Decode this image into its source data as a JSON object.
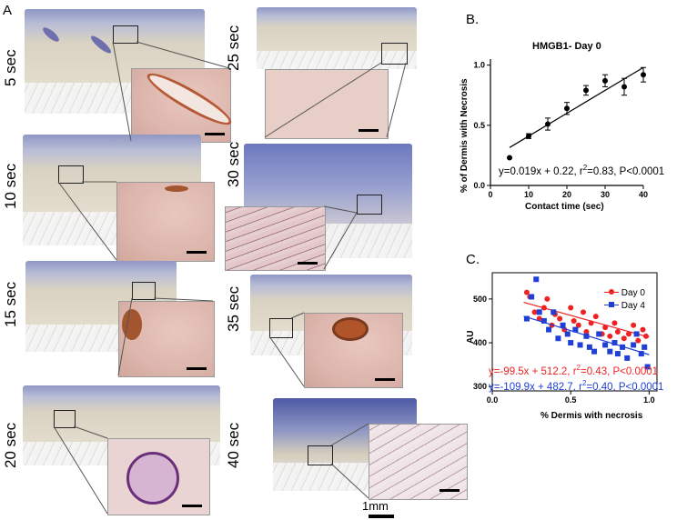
{
  "panel_a": {
    "letter": "A",
    "scale_bar_label": "1mm",
    "tiles": [
      {
        "label": "5 sec"
      },
      {
        "label": "25 sec"
      },
      {
        "label": "10 sec"
      },
      {
        "label": "30 sec"
      },
      {
        "label": "15 sec"
      },
      {
        "label": "35 sec"
      },
      {
        "label": "20 sec"
      },
      {
        "label": "40 sec"
      }
    ]
  },
  "panel_b": {
    "letter": "B.",
    "equation": {
      "pre": "y=0.019x + 0.22, r",
      "sup": "2",
      "post": "=0.83, P<0.0001"
    }
  },
  "panel_c": {
    "letter": "C.",
    "equation_day0": {
      "pre": "y=-99.5x + 512.2, r",
      "sup": "2",
      "post": "=0.43, P<0.0001"
    },
    "equation_day4": {
      "pre": "y=-109.9x + 482.7, r",
      "sup": "2",
      "post": "=0.40, P<0.0001"
    }
  },
  "chart_data": [
    {
      "type": "line",
      "title": "HMGB1- Day 0",
      "xlabel": "Contact time (sec)",
      "ylabel": "% of Dermis with Necrosis",
      "xlim": [
        0,
        40
      ],
      "ylim": [
        0.0,
        1.05
      ],
      "xticks": [
        0,
        10,
        20,
        30,
        40
      ],
      "yticks": [
        "0.0",
        "0.5",
        "1.0"
      ],
      "x": [
        5,
        10,
        15,
        20,
        25,
        30,
        35,
        40
      ],
      "y": [
        0.23,
        0.41,
        0.51,
        0.64,
        0.79,
        0.87,
        0.82,
        0.92
      ],
      "err": [
        0,
        0.02,
        0.05,
        0.05,
        0.04,
        0.05,
        0.07,
        0.06
      ],
      "fit": {
        "slope": 0.019,
        "intercept": 0.22
      },
      "colors": {
        "points": "#000000",
        "fit": "#000000"
      }
    },
    {
      "type": "scatter",
      "xlabel": "% Dermis with necrosis",
      "ylabel": "AU",
      "xlim": [
        0.0,
        1.05
      ],
      "ylim": [
        290,
        560
      ],
      "xticks": [
        "0.0",
        "0.5",
        "1.0"
      ],
      "yticks": [
        "300",
        "400",
        "500"
      ],
      "series": [
        {
          "name": "Day 0",
          "color": "#ee2222",
          "x": [
            0.22,
            0.24,
            0.27,
            0.3,
            0.33,
            0.35,
            0.38,
            0.4,
            0.43,
            0.46,
            0.5,
            0.52,
            0.55,
            0.58,
            0.6,
            0.63,
            0.66,
            0.7,
            0.72,
            0.75,
            0.78,
            0.8,
            0.84,
            0.87,
            0.9,
            0.93,
            0.96,
            0.98
          ],
          "y": [
            515,
            505,
            470,
            455,
            480,
            500,
            440,
            465,
            455,
            430,
            480,
            450,
            440,
            470,
            425,
            445,
            460,
            420,
            435,
            415,
            445,
            425,
            410,
            420,
            440,
            405,
            430,
            415
          ],
          "fit": {
            "slope": -99.5,
            "intercept": 512.2
          }
        },
        {
          "name": "Day 4",
          "color": "#1f3fd6",
          "x": [
            0.22,
            0.25,
            0.28,
            0.3,
            0.33,
            0.36,
            0.39,
            0.42,
            0.45,
            0.48,
            0.5,
            0.53,
            0.56,
            0.6,
            0.62,
            0.65,
            0.68,
            0.72,
            0.75,
            0.78,
            0.8,
            0.83,
            0.86,
            0.9,
            0.92,
            0.95,
            0.97,
            0.99
          ],
          "y": [
            455,
            505,
            545,
            470,
            450,
            430,
            470,
            410,
            440,
            420,
            400,
            430,
            395,
            415,
            390,
            380,
            420,
            395,
            380,
            400,
            375,
            390,
            365,
            395,
            420,
            375,
            390,
            345
          ],
          "fit": {
            "slope": -109.9,
            "intercept": 482.7
          }
        }
      ]
    }
  ]
}
